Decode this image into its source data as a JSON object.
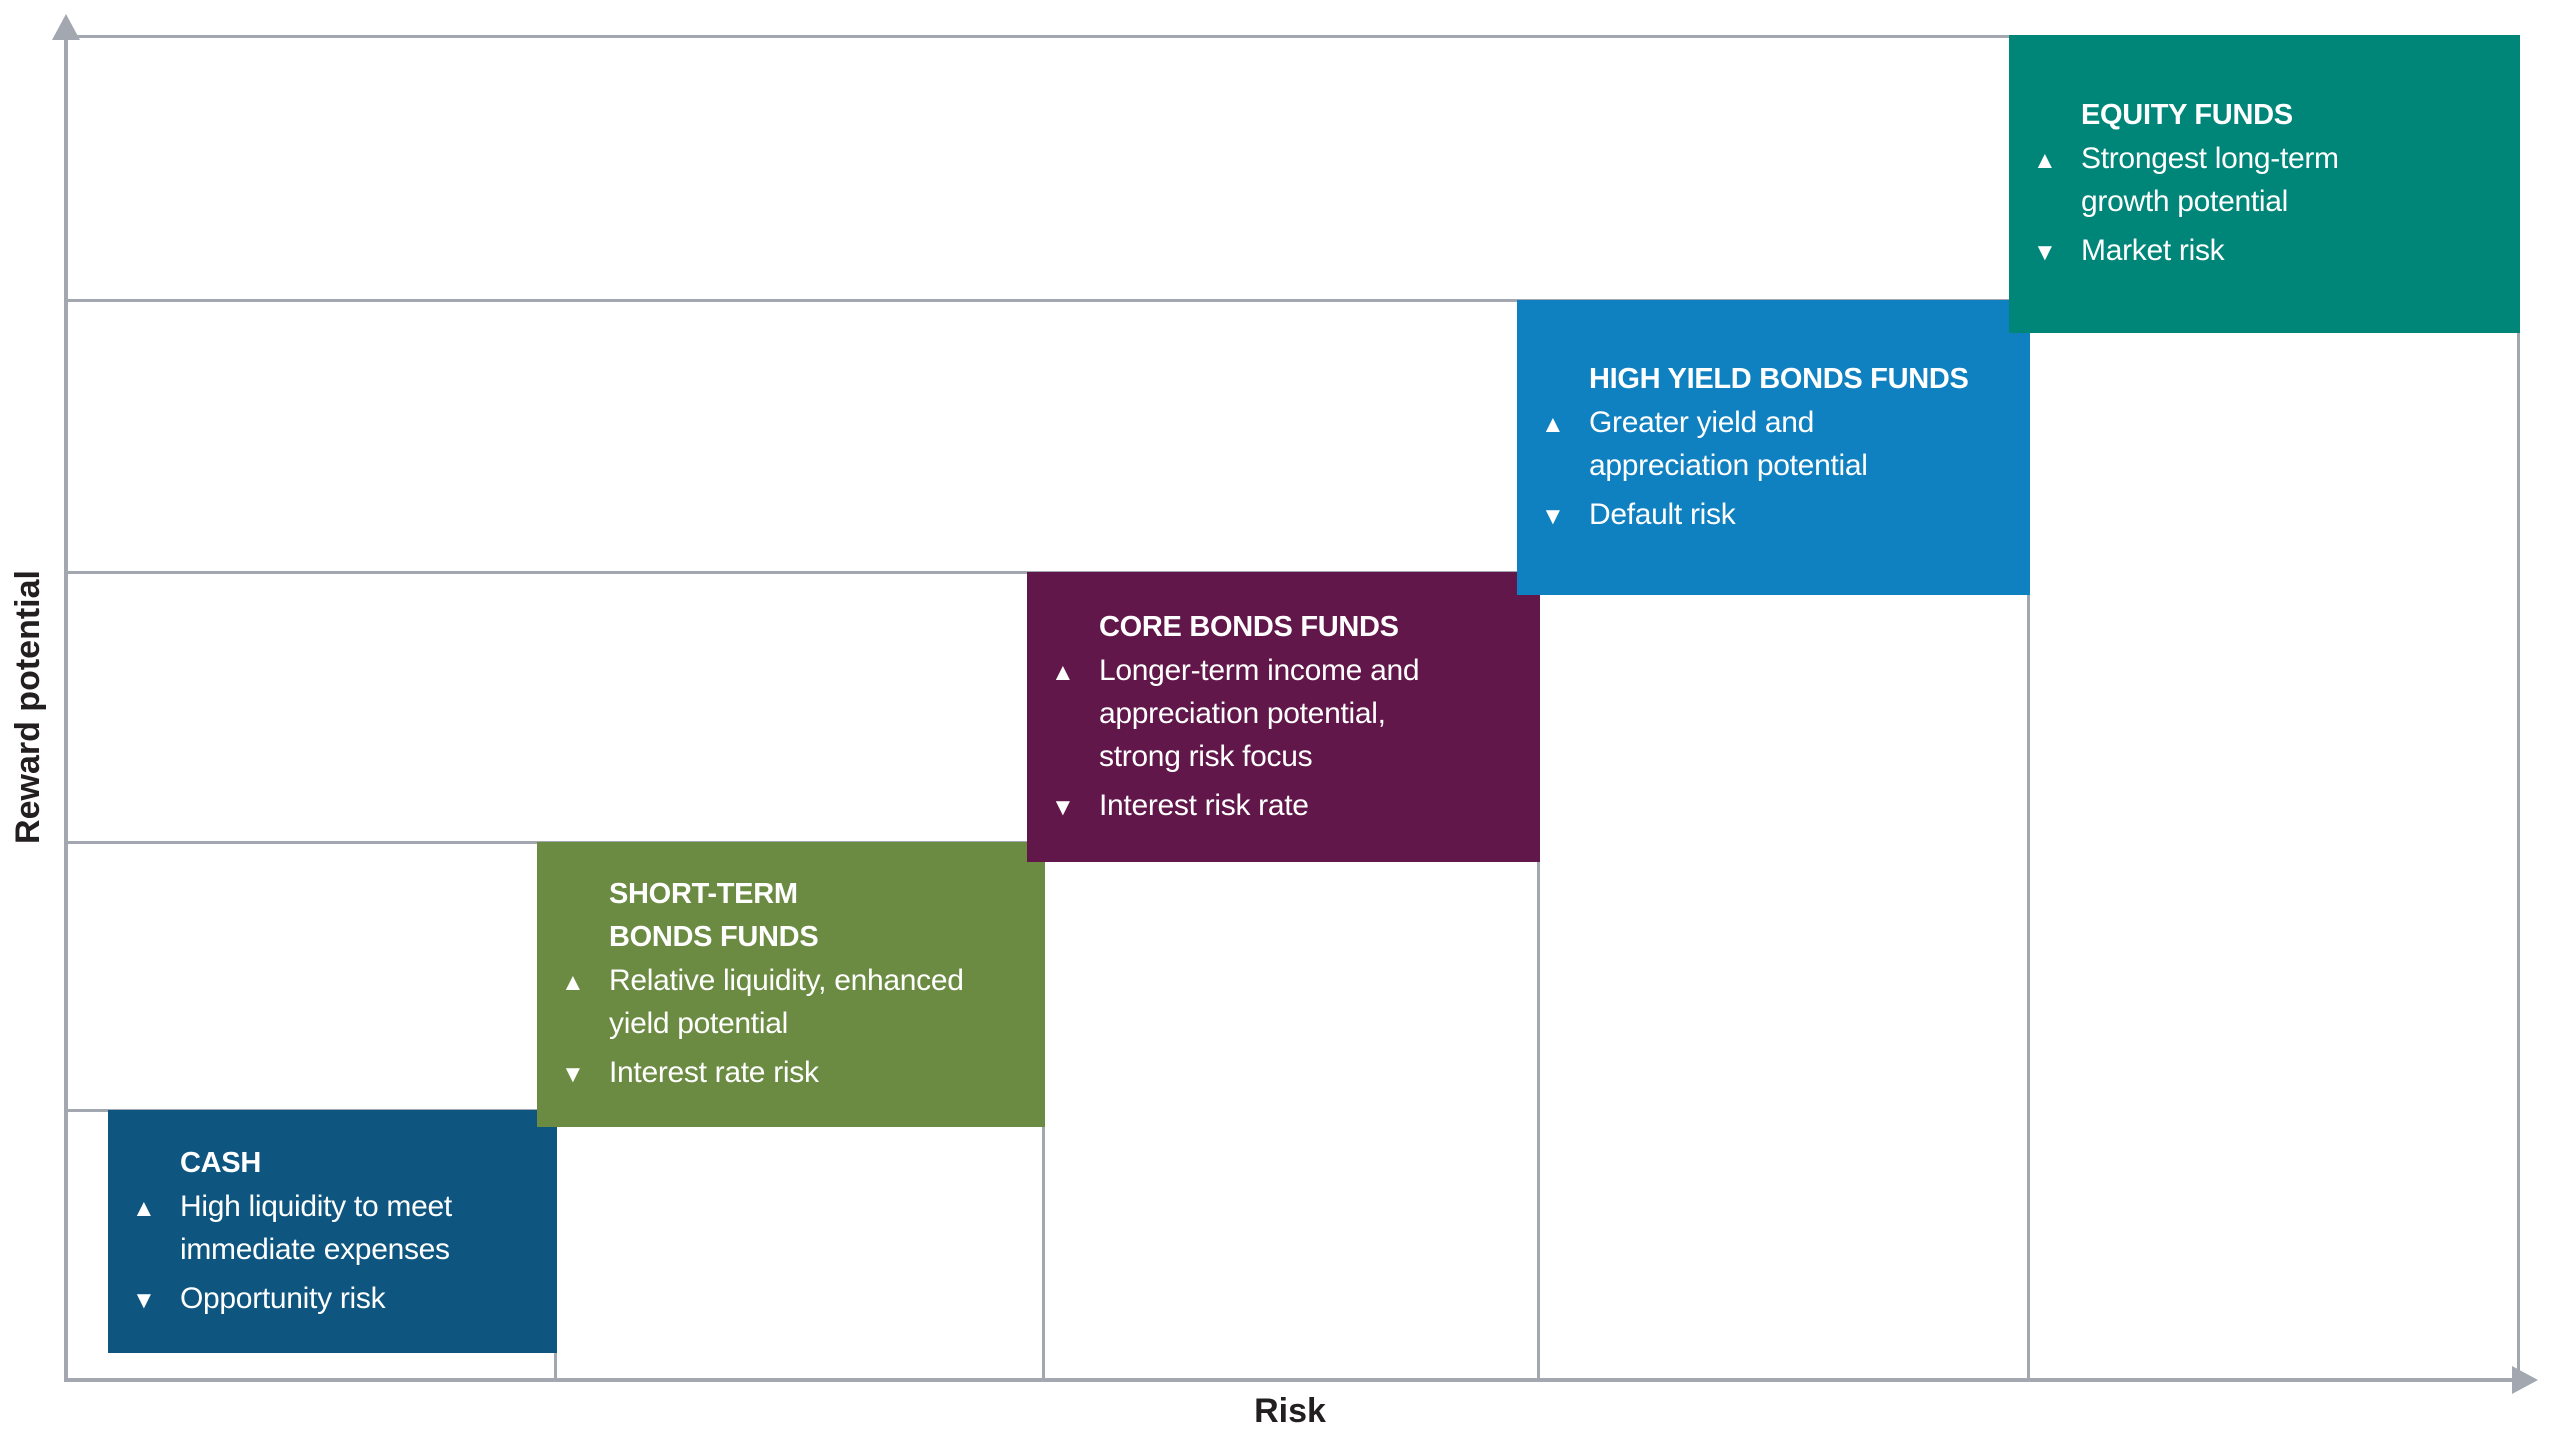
{
  "axes": {
    "x_label": "Risk",
    "y_label": "Reward potential",
    "line_color": "#A2A7B0",
    "label_color": "#231F20"
  },
  "icons": {
    "up": "▲",
    "down": "▼"
  },
  "funds": [
    {
      "title": "CASH",
      "color": "#0E5680",
      "pro": "High liquidity to meet\nimmediate expenses",
      "con": "Opportunity risk"
    },
    {
      "title": "SHORT-TERM\nBONDS FUNDS",
      "color": "#6B8B42",
      "pro": "Relative liquidity, enhanced\nyield potential",
      "con": "Interest rate risk"
    },
    {
      "title": "CORE BONDS FUNDS",
      "color": "#611749",
      "pro": "Longer-term income and\nappreciation potential,\nstrong risk focus",
      "con": "Interest risk rate"
    },
    {
      "title": "HIGH YIELD BONDS FUNDS",
      "color": "#0F80C0",
      "pro": "Greater yield and\nappreciation potential",
      "con": "Default risk"
    },
    {
      "title": "EQUITY FUNDS",
      "color": "#008679",
      "pro": "Strongest long-term\ngrowth potential",
      "con": "Market risk"
    }
  ],
  "chart_data": {
    "type": "scatter",
    "subtype": "stepped risk-reward concept chart (staircase)",
    "title": "",
    "xlabel": "Risk",
    "ylabel": "Reward potential",
    "x": [
      1,
      2,
      3,
      4,
      5
    ],
    "y": [
      1,
      2,
      3,
      4,
      5
    ],
    "point_labels": [
      "CASH",
      "SHORT-TERM BONDS FUNDS",
      "CORE BONDS FUNDS",
      "HIGH YIELD BONDS FUNDS",
      "EQUITY FUNDS"
    ],
    "point_colors": [
      "#0E5680",
      "#6B8B42",
      "#611749",
      "#0F80C0",
      "#008679"
    ],
    "annotations": [
      {
        "label": "CASH",
        "up": "High liquidity to meet immediate expenses",
        "down": "Opportunity risk"
      },
      {
        "label": "SHORT-TERM BONDS FUNDS",
        "up": "Relative liquidity, enhanced yield potential",
        "down": "Interest rate risk"
      },
      {
        "label": "CORE BONDS FUNDS",
        "up": "Longer-term income and appreciation potential, strong risk focus",
        "down": "Interest risk rate"
      },
      {
        "label": "HIGH YIELD BONDS FUNDS",
        "up": "Greater yield and appreciation potential",
        "down": "Default risk"
      },
      {
        "label": "EQUITY FUNDS",
        "up": "Strongest long-term growth potential",
        "down": "Market risk"
      }
    ],
    "axis_ticks": "none",
    "grid": "step lines from y-axis to each box right edge, dropping vertically to x-axis",
    "legend": "none"
  }
}
